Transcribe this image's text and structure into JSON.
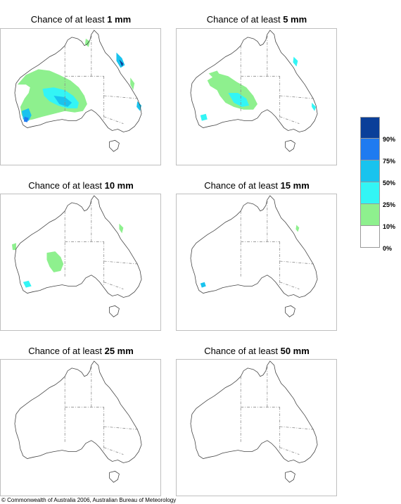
{
  "panels": [
    {
      "title_prefix": "Chance of at least",
      "threshold": "1 mm"
    },
    {
      "title_prefix": "Chance of at least",
      "threshold": "5 mm"
    },
    {
      "title_prefix": "Chance of at least",
      "threshold": "10 mm"
    },
    {
      "title_prefix": "Chance of at least",
      "threshold": "15 mm"
    },
    {
      "title_prefix": "Chance of at least",
      "threshold": "25 mm"
    },
    {
      "title_prefix": "Chance of at least",
      "threshold": "50 mm"
    }
  ],
  "legend": {
    "labels": [
      "90%",
      "75%",
      "50%",
      "25%",
      "10%",
      "0%"
    ],
    "colors": [
      "#0a3f99",
      "#1f7bf0",
      "#19c3ee",
      "#33f5f5",
      "#8ef08e",
      "#ffffff"
    ]
  },
  "footer": {
    "copyright": "© Commonwealth of Australia 2006, Australian Bureau of Meteorology"
  }
}
